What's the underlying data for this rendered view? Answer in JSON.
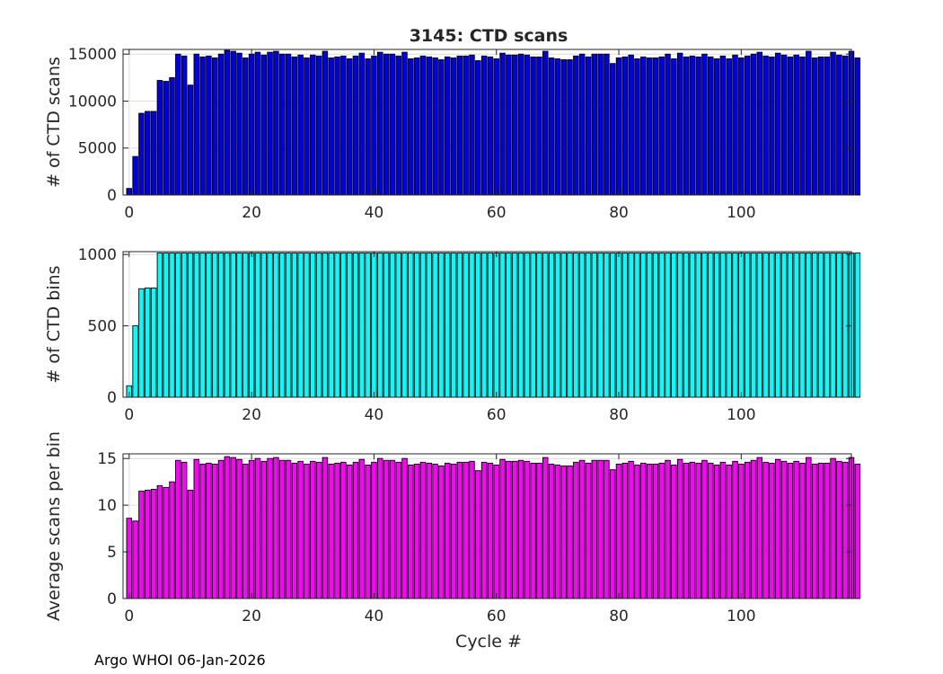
{
  "figure": {
    "title": "3145: CTD scans",
    "xlabel": "Cycle #",
    "footer": "Argo WHOI 06-Jan-2026"
  },
  "chart_data": [
    {
      "type": "bar",
      "ylabel": "# of CTD scans",
      "color": "#0000e6",
      "xlim": [
        -1,
        118
      ],
      "ylim": [
        0,
        15500
      ],
      "xticks": [
        0,
        20,
        40,
        60,
        80,
        100
      ],
      "yticks": [
        0,
        5000,
        10000,
        15000
      ],
      "grid": true,
      "x_start": 0,
      "values": [
        700,
        4100,
        8700,
        8900,
        8900,
        12200,
        12100,
        12500,
        15000,
        14800,
        11700,
        15000,
        14700,
        14800,
        14600,
        15000,
        15400,
        15300,
        15100,
        14600,
        15000,
        15200,
        14900,
        15200,
        15300,
        15000,
        15000,
        14700,
        14900,
        14600,
        14900,
        14800,
        15300,
        14600,
        14700,
        14800,
        14500,
        14800,
        15100,
        14500,
        14800,
        15200,
        15000,
        15000,
        14800,
        15200,
        14500,
        14600,
        14800,
        14700,
        14600,
        14400,
        14700,
        14600,
        14800,
        14800,
        14900,
        14300,
        14800,
        14700,
        14500,
        15100,
        14900,
        14900,
        15000,
        14900,
        14700,
        14700,
        15300,
        14600,
        14500,
        14400,
        14400,
        14800,
        15000,
        14700,
        15000,
        15000,
        15000,
        14000,
        14600,
        14700,
        14900,
        14500,
        14700,
        14600,
        14600,
        14700,
        15000,
        14500,
        15100,
        14700,
        14800,
        14700,
        15000,
        14700,
        14500,
        14800,
        14500,
        14900,
        14600,
        14800,
        15000,
        15200,
        14800,
        14700,
        15100,
        14900,
        14700,
        14900,
        14700,
        15300,
        14600,
        14700,
        14700,
        15200,
        14900,
        14800,
        15300,
        14600
      ]
    },
    {
      "type": "bar",
      "ylabel": "# of CTD bins",
      "color": "#00ffff",
      "xlim": [
        -1,
        118
      ],
      "ylim": [
        0,
        1020
      ],
      "xticks": [
        0,
        20,
        40,
        60,
        80,
        100
      ],
      "yticks": [
        0,
        500,
        1000
      ],
      "grid": true,
      "x_start": 0,
      "values": [
        80,
        500,
        760,
        765,
        765,
        1010,
        1010,
        1010,
        1010,
        1010,
        1010,
        1010,
        1010,
        1010,
        1010,
        1010,
        1010,
        1010,
        1010,
        1010,
        1010,
        1010,
        1010,
        1010,
        1010,
        1010,
        1010,
        1010,
        1010,
        1010,
        1010,
        1010,
        1010,
        1010,
        1010,
        1010,
        1010,
        1010,
        1010,
        1010,
        1010,
        1010,
        1010,
        1010,
        1010,
        1010,
        1010,
        1010,
        1010,
        1010,
        1010,
        1010,
        1010,
        1010,
        1010,
        1010,
        1010,
        1010,
        1010,
        1010,
        1010,
        1010,
        1010,
        1010,
        1010,
        1010,
        1010,
        1010,
        1010,
        1010,
        1010,
        1010,
        1010,
        1010,
        1010,
        1010,
        1010,
        1010,
        1010,
        1010,
        1010,
        1010,
        1010,
        1010,
        1010,
        1010,
        1010,
        1010,
        1010,
        1010,
        1010,
        1010,
        1010,
        1010,
        1010,
        1010,
        1010,
        1010,
        1010,
        1010,
        1010,
        1010,
        1010,
        1010,
        1010,
        1010,
        1010,
        1010,
        1010,
        1010,
        1010,
        1010,
        1010,
        1010,
        1010,
        1010,
        1010,
        1010,
        1010,
        1010
      ]
    },
    {
      "type": "bar",
      "ylabel": "Average scans per bin",
      "color": "#ff00ff",
      "xlim": [
        -1,
        118
      ],
      "ylim": [
        0,
        15.5
      ],
      "xticks": [
        0,
        20,
        40,
        60,
        80,
        100
      ],
      "yticks": [
        0,
        5,
        10,
        15
      ],
      "grid": true,
      "x_start": 0,
      "values": [
        8.6,
        8.3,
        11.5,
        11.6,
        11.7,
        12.1,
        11.9,
        12.5,
        14.8,
        14.6,
        11.6,
        14.9,
        14.4,
        14.5,
        14.4,
        14.8,
        15.2,
        15.1,
        14.9,
        14.4,
        14.8,
        15.0,
        14.7,
        15.0,
        15.1,
        14.8,
        14.8,
        14.5,
        14.7,
        14.4,
        14.7,
        14.6,
        15.1,
        14.4,
        14.5,
        14.6,
        14.3,
        14.6,
        14.9,
        14.3,
        14.6,
        15.0,
        14.8,
        14.8,
        14.6,
        15.0,
        14.3,
        14.4,
        14.6,
        14.5,
        14.4,
        14.2,
        14.5,
        14.4,
        14.6,
        14.6,
        14.7,
        13.7,
        14.6,
        14.5,
        14.3,
        14.9,
        14.7,
        14.7,
        14.8,
        14.7,
        14.5,
        14.5,
        15.1,
        14.4,
        14.3,
        14.2,
        14.2,
        14.6,
        14.8,
        14.5,
        14.8,
        14.8,
        14.8,
        13.8,
        14.4,
        14.5,
        14.7,
        14.3,
        14.5,
        14.4,
        14.4,
        14.5,
        14.8,
        14.3,
        14.9,
        14.5,
        14.6,
        14.5,
        14.8,
        14.5,
        14.3,
        14.6,
        14.3,
        14.7,
        14.4,
        14.6,
        14.8,
        15.1,
        14.6,
        14.5,
        14.9,
        14.7,
        14.5,
        14.7,
        14.5,
        15.1,
        14.4,
        14.5,
        14.5,
        15.0,
        14.7,
        14.6,
        15.1,
        14.4
      ]
    }
  ]
}
